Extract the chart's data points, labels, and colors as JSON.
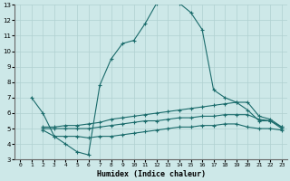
{
  "xlabel": "Humidex (Indice chaleur)",
  "xlim": [
    -0.5,
    23.5
  ],
  "ylim": [
    3,
    13
  ],
  "xticks": [
    0,
    1,
    2,
    3,
    4,
    5,
    6,
    7,
    8,
    9,
    10,
    11,
    12,
    13,
    14,
    15,
    16,
    17,
    18,
    19,
    20,
    21,
    22,
    23
  ],
  "yticks": [
    3,
    4,
    5,
    6,
    7,
    8,
    9,
    10,
    11,
    12,
    13
  ],
  "bg_color": "#cde8e8",
  "grid_color": "#b0d0d0",
  "line_color": "#1a6b6b",
  "line1_x": [
    1,
    2,
    3,
    4,
    5,
    6,
    7,
    8,
    9,
    10,
    11,
    12,
    13,
    14,
    15,
    16,
    17,
    18,
    19,
    20,
    21,
    22,
    23
  ],
  "line1_y": [
    7.0,
    6.0,
    4.5,
    4.0,
    3.5,
    3.3,
    7.8,
    9.5,
    10.5,
    10.7,
    11.8,
    13.1,
    13.2,
    13.1,
    12.5,
    11.4,
    7.5,
    7.0,
    6.7,
    6.2,
    5.5,
    5.5,
    5.1
  ],
  "line2_x": [
    2,
    3,
    4,
    5,
    6,
    7,
    8,
    9,
    10,
    11,
    12,
    13,
    14,
    15,
    16,
    17,
    18,
    19,
    20,
    21,
    22,
    23
  ],
  "line2_y": [
    5.1,
    5.1,
    5.2,
    5.2,
    5.3,
    5.4,
    5.6,
    5.7,
    5.8,
    5.9,
    6.0,
    6.1,
    6.2,
    6.3,
    6.4,
    6.5,
    6.6,
    6.7,
    6.7,
    5.8,
    5.6,
    5.1
  ],
  "line3_x": [
    2,
    3,
    4,
    5,
    6,
    7,
    8,
    9,
    10,
    11,
    12,
    13,
    14,
    15,
    16,
    17,
    18,
    19,
    20,
    21,
    22,
    23
  ],
  "line3_y": [
    5.0,
    5.0,
    5.0,
    5.0,
    5.0,
    5.1,
    5.2,
    5.3,
    5.4,
    5.5,
    5.5,
    5.6,
    5.7,
    5.7,
    5.8,
    5.8,
    5.9,
    5.9,
    5.9,
    5.6,
    5.5,
    5.0
  ],
  "line4_x": [
    2,
    3,
    4,
    5,
    6,
    7,
    8,
    9,
    10,
    11,
    12,
    13,
    14,
    15,
    16,
    17,
    18,
    19,
    20,
    21,
    22,
    23
  ],
  "line4_y": [
    4.9,
    4.5,
    4.5,
    4.5,
    4.4,
    4.5,
    4.5,
    4.6,
    4.7,
    4.8,
    4.9,
    5.0,
    5.1,
    5.1,
    5.2,
    5.2,
    5.3,
    5.3,
    5.1,
    5.0,
    5.0,
    4.9
  ]
}
